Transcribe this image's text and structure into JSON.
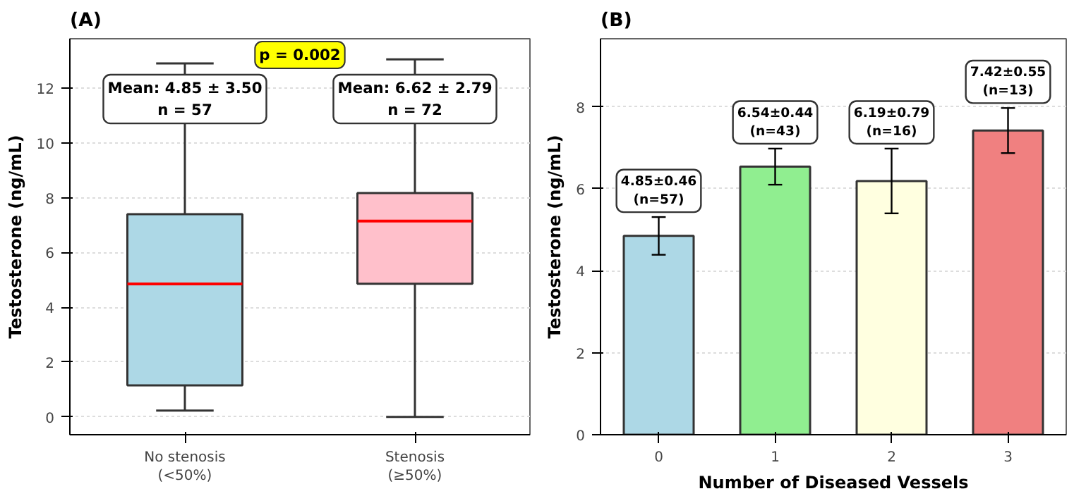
{
  "chart_data": [
    {
      "type": "box",
      "title": "(A)",
      "ylabel": "Testosterone (ng/mL)",
      "categories": [
        "No stenosis\n(<50%)",
        "Stenosis\n(≥50%)"
      ],
      "boxes": [
        {
          "low": 0.23,
          "q1": 1.15,
          "median": 4.85,
          "q3": 7.4,
          "high": 12.9
        },
        {
          "low": 0.0,
          "q1": 4.86,
          "median": 7.15,
          "q3": 8.17,
          "high": 13.05
        }
      ],
      "colors": [
        "#add8e6",
        "#ffc0cb"
      ],
      "ylim": [
        -0.65,
        13.8
      ],
      "yticks": [
        0,
        2,
        4,
        6,
        8,
        10,
        12
      ],
      "grid": "y",
      "annotations": [
        {
          "text": "Mean: 4.85 ± 3.50\nn = 57",
          "x": "No stenosis\n(<50%)",
          "y": 11.6
        },
        {
          "text": "Mean: 6.62 ± 2.79\nn = 72",
          "x": "Stenosis\n(≥50%)",
          "y": 11.6
        },
        "p = 0.002"
      ]
    },
    {
      "type": "bar",
      "title": "(B)",
      "xlabel": "Number of Diseased Vessels",
      "ylabel": "Testosterone (ng/mL)",
      "categories": [
        "0",
        "1",
        "2",
        "3"
      ],
      "values": [
        4.85,
        6.54,
        6.19,
        7.42
      ],
      "errors": [
        0.46,
        0.44,
        0.79,
        0.55
      ],
      "colors": [
        "#add8e6",
        "#90ee90",
        "#ffffe0",
        "#f08080"
      ],
      "value_labels": [
        "4.85±0.46\n(n=57)",
        "6.54±0.44\n(n=43)",
        "6.19±0.79\n(n=16)",
        "7.42±0.55\n(n=13)"
      ],
      "ylim": [
        0,
        9.66
      ],
      "yticks": [
        0,
        2,
        4,
        6,
        8
      ],
      "grid": "y"
    }
  ]
}
